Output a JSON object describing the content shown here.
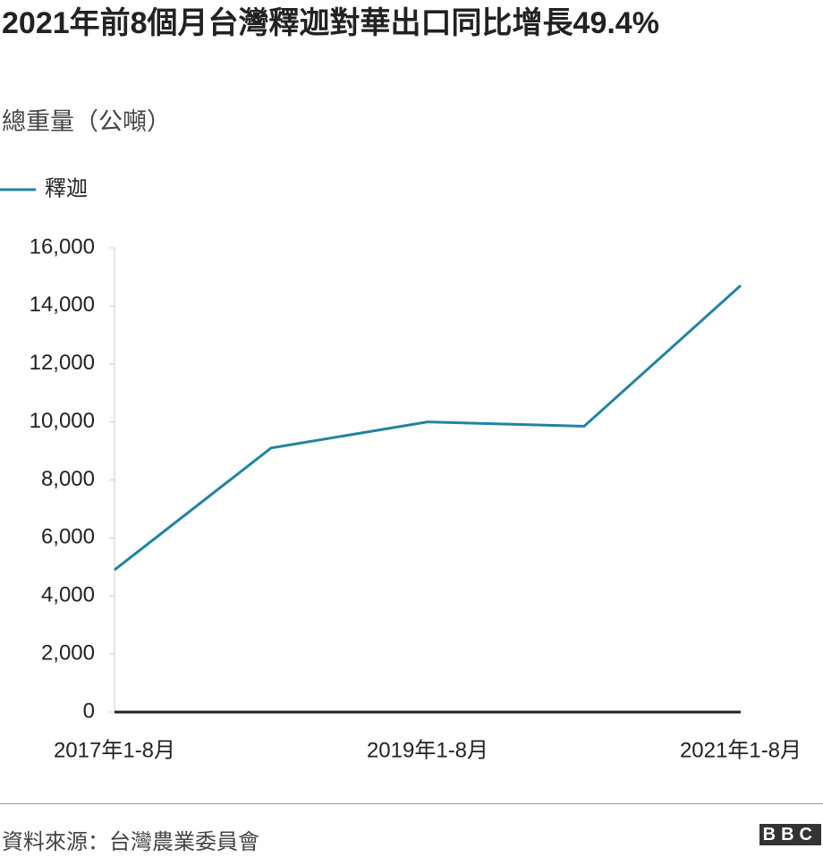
{
  "chart_data": {
    "type": "line",
    "title": "2021年前8個月台灣釋迦對華出口同比增長49.4%",
    "subtitle": "總重量（公噸）",
    "categories": [
      "2017年1-8月",
      null,
      "2019年1-8月",
      null,
      "2021年1-8月"
    ],
    "series": [
      {
        "name": "釋迦",
        "color": "#2283a2",
        "values": [
          4900,
          9100,
          10000,
          9850,
          14700
        ]
      }
    ],
    "ylim": [
      0,
      16000
    ],
    "yticks": [
      0,
      {
        "value": 2000,
        "label": "2,000"
      },
      {
        "value": 4000,
        "label": "4,000"
      },
      {
        "value": 6000,
        "label": "6,000"
      },
      {
        "value": 8000,
        "label": "8,000"
      },
      {
        "value": 10000,
        "label": "10,000"
      },
      {
        "value": 12000,
        "label": "12,000"
      },
      {
        "value": 14000,
        "label": "14,000"
      },
      {
        "value": 16000,
        "label": "16,000"
      }
    ],
    "grid": false,
    "legend": "top-left",
    "source": "資料來源：台灣農業委員會",
    "logo": "BBC"
  }
}
